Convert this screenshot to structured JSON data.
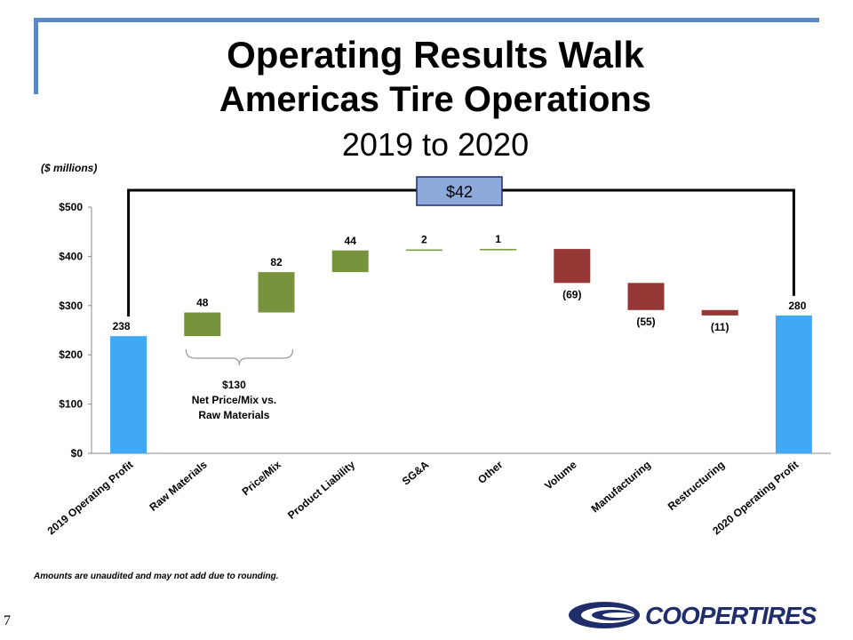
{
  "header": {
    "title_line1": "Operating Results Walk",
    "title_line2": "Americas Tire Operations",
    "title_line3": "2019 to 2020",
    "units": "($ millions)"
  },
  "chart_data": {
    "type": "waterfall",
    "ylim": [
      0,
      500
    ],
    "yticks": [
      0,
      100,
      200,
      300,
      400,
      500
    ],
    "ytick_labels": [
      "$0",
      "$100",
      "$200",
      "$300",
      "$400",
      "$500"
    ],
    "steps": [
      {
        "label": "2019 Operating Profit",
        "value": 238,
        "kind": "total",
        "text": "238"
      },
      {
        "label": "Raw Materials",
        "value": 48,
        "kind": "increase",
        "text": "48"
      },
      {
        "label": "Price/Mix",
        "value": 82,
        "kind": "increase",
        "text": "82"
      },
      {
        "label": "Product Liability",
        "value": 44,
        "kind": "increase",
        "text": "44"
      },
      {
        "label": "SG&A",
        "value": 2,
        "kind": "increase",
        "text": "2"
      },
      {
        "label": "Other",
        "value": 1,
        "kind": "increase",
        "text": "1"
      },
      {
        "label": "Volume",
        "value": -69,
        "kind": "decrease",
        "text": "(69)"
      },
      {
        "label": "Manufacturing",
        "value": -55,
        "kind": "decrease",
        "text": "(55)"
      },
      {
        "label": "Restructuring",
        "value": -11,
        "kind": "decrease",
        "text": "(11)"
      },
      {
        "label": "2020 Operating Profit",
        "value": 280,
        "kind": "total",
        "text": "280"
      }
    ],
    "bracket_total": "$42",
    "annotation": {
      "line1": "$130",
      "line2": "Net Price/Mix vs.",
      "line3": "Raw Materials"
    },
    "colors": {
      "total": "#3fa9f5",
      "increase": "#77933c",
      "decrease": "#953735",
      "bracket_box": "#8eaadb"
    }
  },
  "footnote": "Amounts are unaudited and may not add due to rounding.",
  "page_number": "7",
  "logo": {
    "text": "COOPERTIRES"
  }
}
